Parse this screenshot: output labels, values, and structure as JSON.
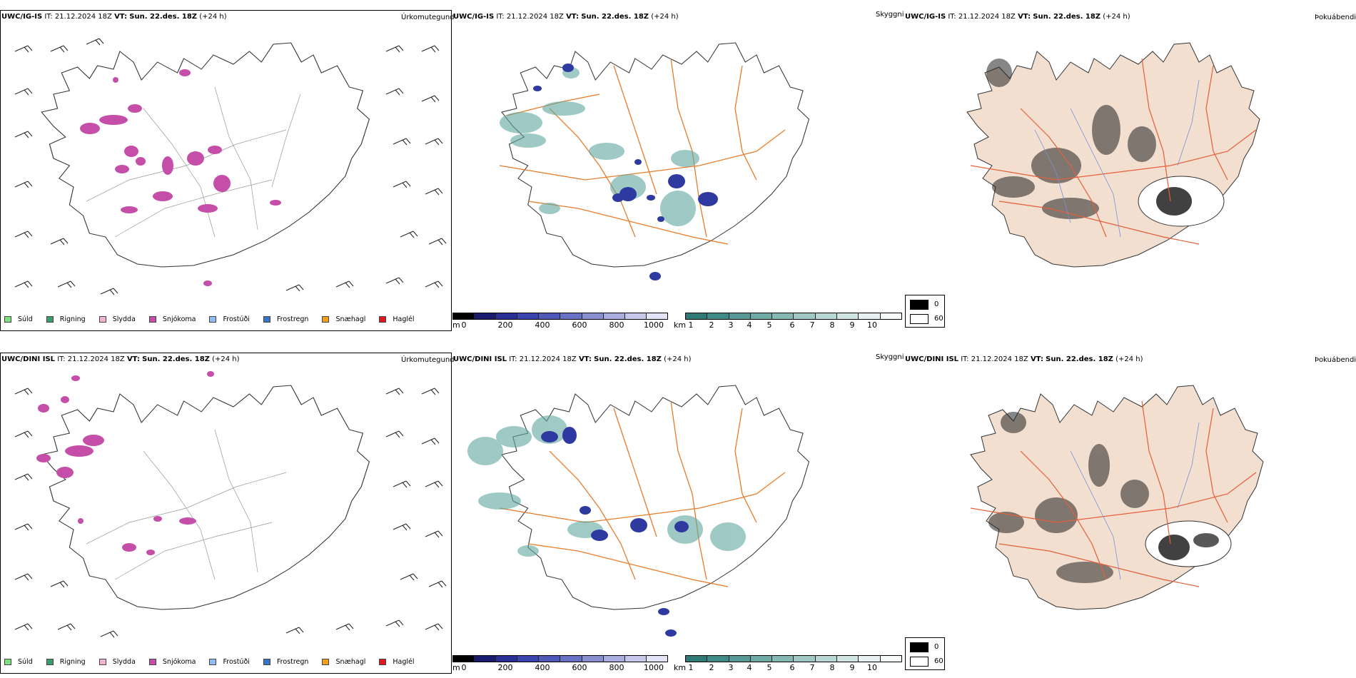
{
  "rows": [
    {
      "model": "UWC/IG-IS",
      "it_label": "IT:",
      "it_value": "21.12.2024 18Z",
      "vt_label": "VT:",
      "vt_value": "Sun. 22.des. 18Z",
      "lead": "(+24 h)"
    },
    {
      "model": "UWC/DINI ISL",
      "it_label": "IT:",
      "it_value": "21.12.2024 18Z",
      "vt_label": "VT:",
      "vt_value": "Sun. 22.des. 18Z",
      "lead": "(+24 h)"
    }
  ],
  "titles": {
    "precip": "Úrkomutegund",
    "visibility": "Skyggni",
    "fog": "Þokuábendi"
  },
  "precip_legend": [
    {
      "label": "Súld",
      "color": "#7fe07f"
    },
    {
      "label": "Rigning",
      "color": "#3d9c6c"
    },
    {
      "label": "Slydda",
      "color": "#f2b3d6"
    },
    {
      "label": "Snjókoma",
      "color": "#c54fa8"
    },
    {
      "label": "Frostúði",
      "color": "#8fbff0"
    },
    {
      "label": "Frostregn",
      "color": "#3a74c4"
    },
    {
      "label": "Snæhagl",
      "color": "#f0a020"
    },
    {
      "label": "Haglél",
      "color": "#e0151d"
    }
  ],
  "cbar_m": {
    "unit": "m",
    "ticks": [
      "0",
      "200",
      "400",
      "600",
      "800",
      "1000"
    ],
    "colors": [
      "#000000",
      "#1b1b6e",
      "#2a2f96",
      "#3b45ad",
      "#5058b8",
      "#6a70c4",
      "#8a8fd1",
      "#a9acde",
      "#c6c8ea",
      "#e2e3f5"
    ]
  },
  "cbar_km": {
    "unit": "km",
    "ticks": [
      "1",
      "2",
      "3",
      "4",
      "5",
      "6",
      "7",
      "8",
      "9",
      "10"
    ],
    "colors": [
      "#2d7b74",
      "#3f8b85",
      "#569a95",
      "#6ea9a4",
      "#87b9b4",
      "#a0c8c4",
      "#b8d6d3",
      "#d0e4e2",
      "#e6f1f0",
      "#f6faf9"
    ]
  },
  "fog_legend": {
    "low": "0",
    "high": "60"
  },
  "colors": {
    "snow": "#c54fa8",
    "roads": "#e87c2a",
    "land_fog": "#f2dfd0",
    "fog_roads": "#e4603a",
    "rivers": "#7b8fd8",
    "teal": "#5fa69f",
    "lowvis": "#2f3aa0"
  }
}
